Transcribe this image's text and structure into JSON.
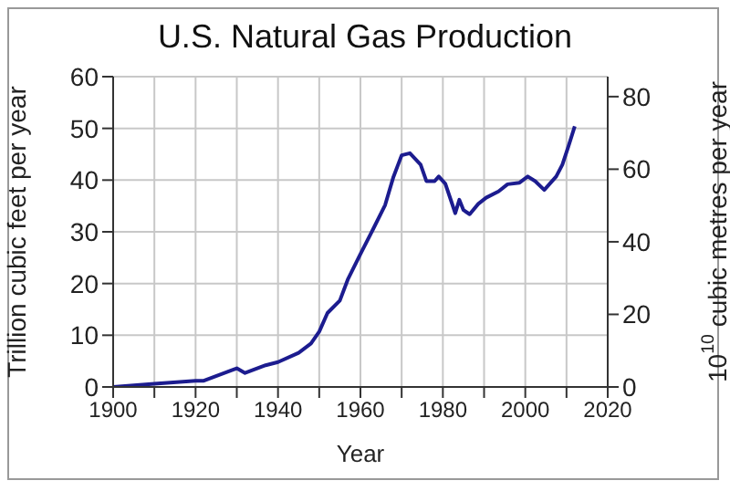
{
  "chart_data": {
    "type": "line",
    "title": "U.S. Natural Gas Production",
    "xlabel": "Year",
    "ylabel": "Trillion cubic feet per year",
    "y2label": "10$^{10}$ cubic metres per year",
    "x": [
      1900,
      1910,
      1920,
      1922,
      1930,
      1932,
      1937,
      1940,
      1945,
      1948,
      1950,
      1952,
      1955,
      1957,
      1960,
      1963,
      1966,
      1968,
      1970,
      1972,
      1974.6,
      1976,
      1978,
      1979,
      1980.6,
      1982,
      1983,
      1984,
      1985,
      1986.5,
      1988.6,
      1990.5,
      1993.5,
      1995.7,
      1998.6,
      2000.6,
      2002.4,
      2004.6,
      2007.5,
      2009,
      2010.5,
      2012
    ],
    "series": [
      {
        "color": "#1c1c8f",
        "values": [
          0,
          0.6,
          1.2,
          1.2,
          3.6,
          2.7,
          4.2,
          4.8,
          6.6,
          8.4,
          10.7,
          14.3,
          16.7,
          20.9,
          25.7,
          30.4,
          35.2,
          40.6,
          44.8,
          45.2,
          43,
          39.8,
          39.8,
          40.7,
          39.3,
          36,
          33.6,
          36.2,
          34.2,
          33.4,
          35.4,
          36.6,
          37.8,
          39.2,
          39.5,
          40.7,
          39.8,
          38.1,
          40.7,
          43,
          46.6,
          50.4
        ]
      }
    ],
    "xlim": [
      1900,
      2020
    ],
    "xticks": [
      1900,
      {
        "value": 1910,
        "label": null
      },
      1920,
      {
        "value": 1930,
        "label": null
      },
      1940,
      {
        "value": 1950,
        "label": null
      },
      1960,
      {
        "value": 1970,
        "label": null
      },
      1980,
      {
        "value": 1990,
        "label": null
      },
      2000,
      {
        "value": 2010,
        "label": null
      },
      2020
    ],
    "ylim": [
      0,
      60
    ],
    "yticks": [
      0,
      10,
      20,
      30,
      40,
      50,
      60
    ],
    "y2lim": [
      0,
      85.5
    ],
    "y2ticks": [
      0,
      20,
      40,
      60,
      80
    ],
    "grid": true,
    "marker": "none",
    "line_style": "solid"
  }
}
